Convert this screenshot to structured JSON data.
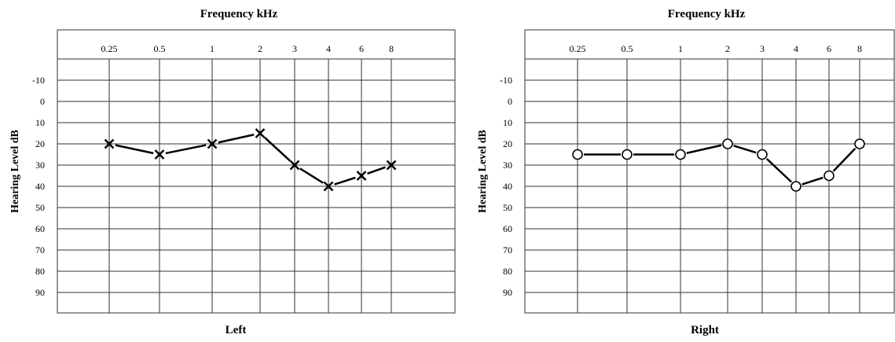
{
  "chart_data": [
    {
      "type": "line",
      "title": "Frequency kHz",
      "xlabel": "Left",
      "ylabel": "Hearing Level dB",
      "categories": [
        "0.25",
        "0.5",
        "1",
        "2",
        "3",
        "4",
        "6",
        "8"
      ],
      "y_ticks": [
        "-10",
        "0",
        "10",
        "20",
        "30",
        "40",
        "50",
        "60",
        "70",
        "80",
        "90"
      ],
      "ylim": [
        -20,
        100
      ],
      "y_inverted": true,
      "grid": true,
      "marker": "x",
      "series": [
        {
          "values": [
            20,
            25,
            20,
            15,
            30,
            40,
            35,
            30
          ]
        }
      ]
    },
    {
      "type": "line",
      "title": "Frequency kHz",
      "xlabel": "Right",
      "ylabel": "Hearing Level dB",
      "categories": [
        "0.25",
        "0.5",
        "1",
        "2",
        "3",
        "4",
        "6",
        "8"
      ],
      "y_ticks": [
        "-10",
        "0",
        "10",
        "20",
        "30",
        "40",
        "50",
        "60",
        "70",
        "80",
        "90"
      ],
      "ylim": [
        -20,
        100
      ],
      "y_inverted": true,
      "grid": true,
      "marker": "circle",
      "series": [
        {
          "values": [
            25,
            25,
            25,
            20,
            25,
            40,
            35,
            20
          ]
        }
      ]
    }
  ]
}
